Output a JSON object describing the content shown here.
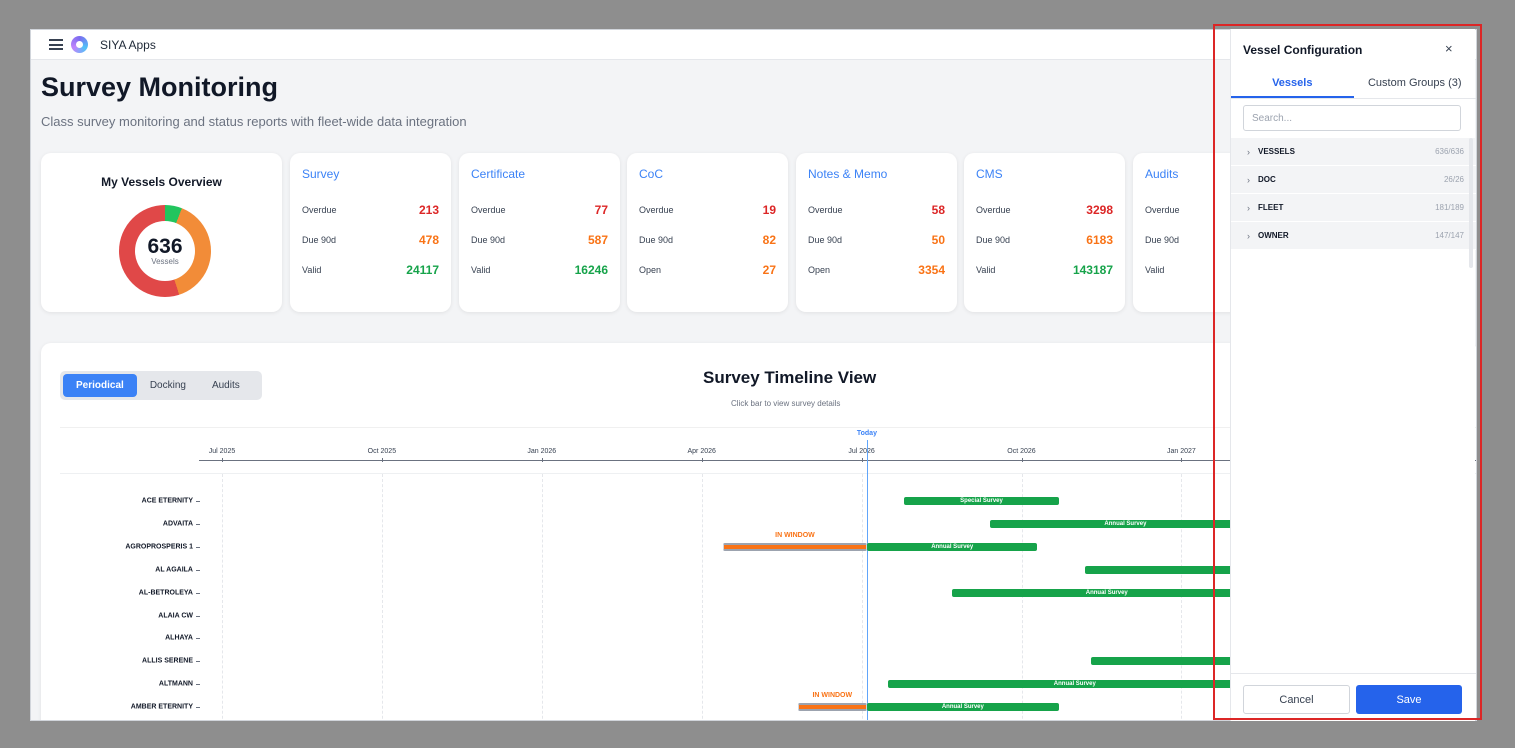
{
  "app": {
    "name": "SIYA Apps"
  },
  "page": {
    "title": "Survey Monitoring",
    "subtitle": "Class survey monitoring and status reports with fleet-wide data integration"
  },
  "overview": {
    "title": "My Vessels Overview",
    "count": "636",
    "count_label": "Vessels",
    "segments": [
      {
        "color": "#22c55e",
        "fraction": 0.06
      },
      {
        "color": "#f28c38",
        "fraction": 0.39
      },
      {
        "color": "#e04848",
        "fraction": 0.55
      }
    ]
  },
  "stat_cards": [
    {
      "title": "Survey",
      "rows": [
        {
          "label": "Overdue",
          "value": "213",
          "tone": "red"
        },
        {
          "label": "Due 90d",
          "value": "478",
          "tone": "orange"
        },
        {
          "label": "Valid",
          "value": "24117",
          "tone": "green"
        }
      ]
    },
    {
      "title": "Certificate",
      "rows": [
        {
          "label": "Overdue",
          "value": "77",
          "tone": "red"
        },
        {
          "label": "Due 90d",
          "value": "587",
          "tone": "orange"
        },
        {
          "label": "Valid",
          "value": "16246",
          "tone": "green"
        }
      ]
    },
    {
      "title": "CoC",
      "rows": [
        {
          "label": "Overdue",
          "value": "19",
          "tone": "red"
        },
        {
          "label": "Due 90d",
          "value": "82",
          "tone": "orange"
        },
        {
          "label": "Open",
          "value": "27",
          "tone": "orange"
        }
      ]
    },
    {
      "title": "Notes & Memo",
      "rows": [
        {
          "label": "Overdue",
          "value": "58",
          "tone": "red"
        },
        {
          "label": "Due 90d",
          "value": "50",
          "tone": "orange"
        },
        {
          "label": "Open",
          "value": "3354",
          "tone": "orange"
        }
      ]
    },
    {
      "title": "CMS",
      "rows": [
        {
          "label": "Overdue",
          "value": "3298",
          "tone": "red"
        },
        {
          "label": "Due 90d",
          "value": "6183",
          "tone": "orange"
        },
        {
          "label": "Valid",
          "value": "143187",
          "tone": "green"
        }
      ]
    },
    {
      "title": "Audits",
      "rows": [
        {
          "label": "Overdue",
          "value": "",
          "tone": "red"
        },
        {
          "label": "Due 90d",
          "value": "",
          "tone": "orange"
        },
        {
          "label": "Valid",
          "value": "",
          "tone": "green"
        }
      ]
    }
  ],
  "timeline": {
    "title": "Survey Timeline View",
    "subtitle": "Click bar to view survey details",
    "tabs": [
      "Periodical",
      "Docking",
      "Audits"
    ],
    "active_tab": 0,
    "today_label": "Today",
    "ticks": [
      {
        "label": "Jul 2025",
        "month": 0
      },
      {
        "label": "Oct 2025",
        "month": 3
      },
      {
        "label": "Jan 2026",
        "month": 6
      },
      {
        "label": "Apr 2026",
        "month": 9
      },
      {
        "label": "Jul 2026",
        "month": 12
      },
      {
        "label": "Oct 2026",
        "month": 15
      },
      {
        "label": "Jan 2027",
        "month": 18
      }
    ],
    "today_month": 12.1,
    "window_label": "IN WINDOW",
    "vessels": [
      {
        "name": "ACE ETERNITY",
        "bars": [
          {
            "start": 12.8,
            "end": 15.7,
            "label": "Special Survey"
          }
        ]
      },
      {
        "name": "ADVAITA",
        "bars": [
          {
            "start": 14.4,
            "end": 19.5,
            "label": "Annual Survey"
          }
        ]
      },
      {
        "name": "AGROPROSPERIS 1",
        "bars": [
          {
            "start": 9.4,
            "end": 12.1,
            "label": "",
            "window": true
          },
          {
            "start": 12.1,
            "end": 15.3,
            "label": "Annual Survey"
          }
        ]
      },
      {
        "name": "AL AGAILA",
        "bars": [
          {
            "start": 16.2,
            "end": 19.5,
            "label": ""
          }
        ]
      },
      {
        "name": "AL-BETROLEYA",
        "bars": [
          {
            "start": 13.7,
            "end": 19.5,
            "label": "Annual Survey"
          }
        ]
      },
      {
        "name": "ALAIA CW",
        "bars": []
      },
      {
        "name": "ALHAYA",
        "bars": []
      },
      {
        "name": "ALLIS SERENE",
        "bars": [
          {
            "start": 16.3,
            "end": 19.5,
            "label": ""
          }
        ]
      },
      {
        "name": "ALTMANN",
        "bars": [
          {
            "start": 12.5,
            "end": 19.5,
            "label": "Annual Survey"
          }
        ]
      },
      {
        "name": "AMBER ETERNITY",
        "bars": [
          {
            "start": 10.8,
            "end": 12.1,
            "label": "",
            "window": true
          },
          {
            "start": 12.1,
            "end": 15.7,
            "label": "Annual Survey"
          }
        ]
      }
    ],
    "extra_window_label_month": 6.1
  },
  "panel": {
    "title": "Vessel Configuration",
    "close_symbol": "×",
    "tabs": [
      "Vessels",
      "Custom Groups (3)"
    ],
    "active_tab": 0,
    "search_placeholder": "Search...",
    "groups": [
      {
        "name": "VESSELS",
        "count": "636/636"
      },
      {
        "name": "DOC",
        "count": "26/26"
      },
      {
        "name": "FLEET",
        "count": "181/189"
      },
      {
        "name": "OWNER",
        "count": "147/147"
      }
    ],
    "cancel_label": "Cancel",
    "save_label": "Save"
  }
}
